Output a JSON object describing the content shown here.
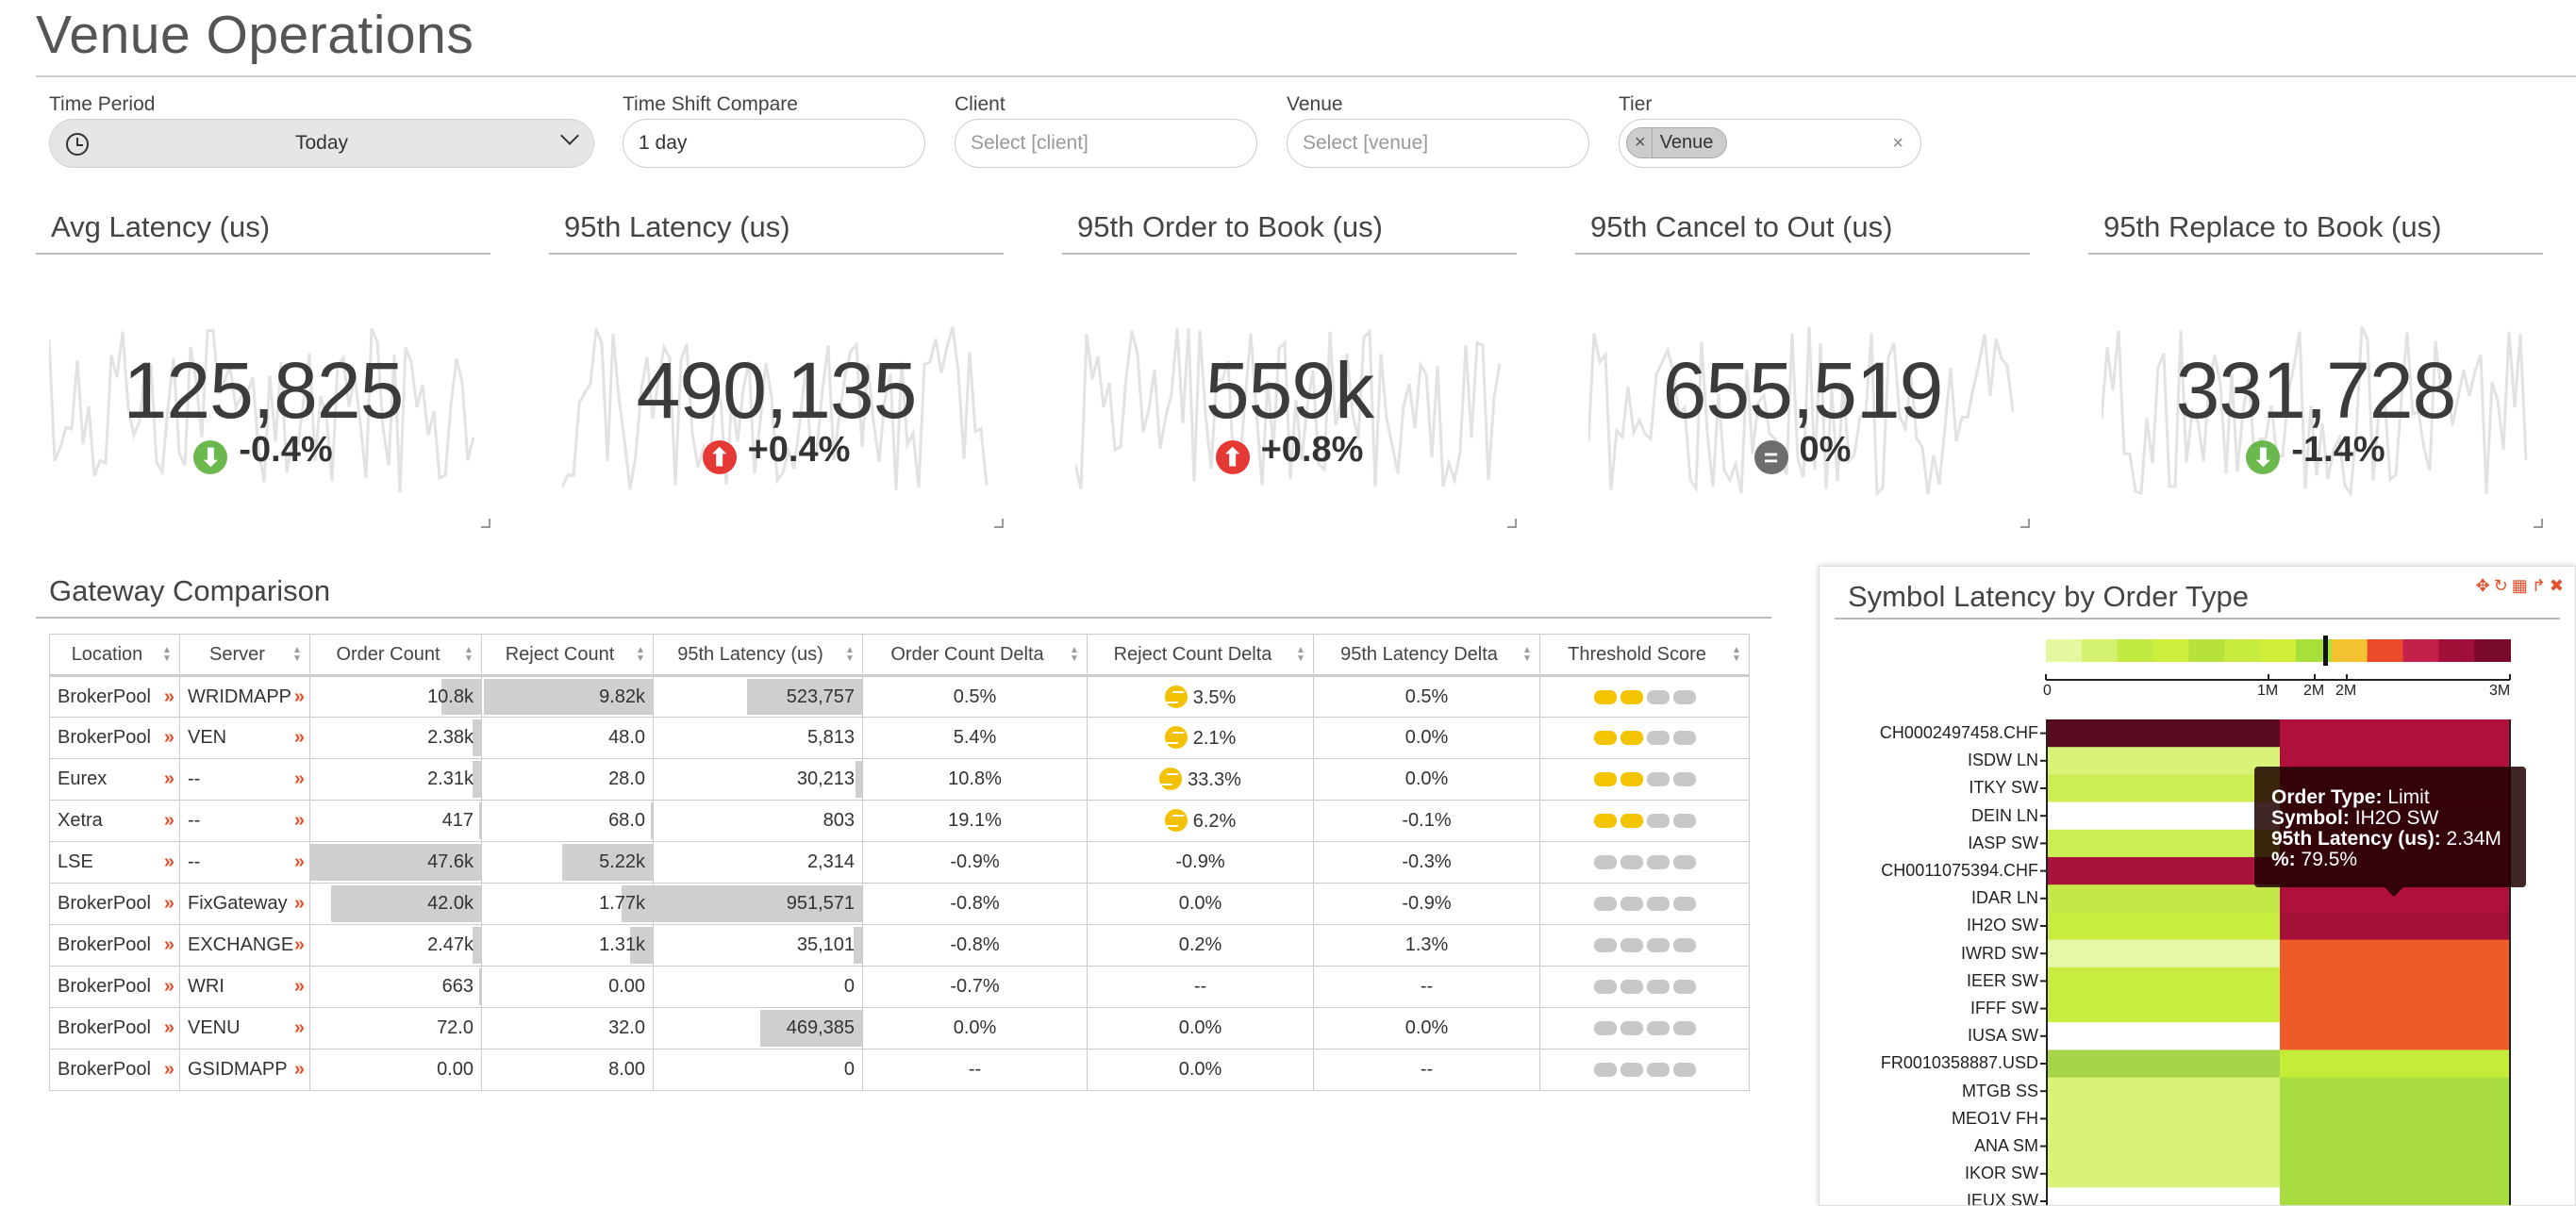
{
  "page": {
    "title": "Venue Operations"
  },
  "filters": {
    "time_period": {
      "label": "Time Period",
      "value": "Today"
    },
    "time_shift": {
      "label": "Time Shift Compare",
      "value": "1 day"
    },
    "client": {
      "label": "Client",
      "placeholder": "Select [client]"
    },
    "venue": {
      "label": "Venue",
      "placeholder": "Select [venue]"
    },
    "tier": {
      "label": "Tier",
      "tag_remove": "×",
      "tag": "Venue",
      "clear": "×"
    }
  },
  "kpis": [
    {
      "title": "Avg Latency (us)",
      "value": "125,825",
      "delta": "-0.4%",
      "direction": "down",
      "color": "#6bb84e"
    },
    {
      "title": "95th Latency (us)",
      "value": "490,135",
      "delta": "+0.4%",
      "direction": "up",
      "color": "#e53935"
    },
    {
      "title": "95th Order to Book (us)",
      "value": "559k",
      "delta": "+0.8%",
      "direction": "up",
      "color": "#e53935"
    },
    {
      "title": "95th Cancel to Out (us)",
      "value": "655,519",
      "delta": "0%",
      "direction": "flat",
      "color": "#6d6d6d"
    },
    {
      "title": "95th Replace to Book (us)",
      "value": "331,728",
      "delta": "-1.4%",
      "direction": "down",
      "color": "#6bb84e"
    }
  ],
  "gateway": {
    "title": "Gateway Comparison",
    "columns": [
      "Location",
      "Server",
      "Order Count",
      "Reject Count",
      "95th Latency (us)",
      "Order Count Delta",
      "Reject Count Delta",
      "95th Latency Delta",
      "Threshold Score"
    ],
    "rows": [
      {
        "location": "BrokerPool",
        "server": "WRIDMAPP",
        "order_count": "10.8k",
        "reject_count": "9.82k",
        "latency": "523,757",
        "order_delta": "0.5%",
        "reject_delta": "3.5%",
        "reject_warn": true,
        "latency_delta": "0.5%",
        "score": 2,
        "bars": [
          0.23,
          0.99,
          0.55
        ]
      },
      {
        "location": "BrokerPool",
        "server": "VEN",
        "order_count": "2.38k",
        "reject_count": "48.0",
        "latency": "5,813",
        "order_delta": "5.4%",
        "reject_delta": "2.1%",
        "reject_warn": true,
        "latency_delta": "0.0%",
        "score": 2,
        "bars": [
          0.05,
          0.0,
          0.0
        ]
      },
      {
        "location": "Eurex",
        "server": "--",
        "order_count": "2.31k",
        "reject_count": "28.0",
        "latency": "30,213",
        "order_delta": "10.8%",
        "reject_delta": "33.3%",
        "reject_warn": true,
        "latency_delta": "0.0%",
        "score": 2,
        "bars": [
          0.05,
          0.0,
          0.03
        ]
      },
      {
        "location": "Xetra",
        "server": "--",
        "order_count": "417",
        "reject_count": "68.0",
        "latency": "803",
        "order_delta": "19.1%",
        "reject_delta": "6.2%",
        "reject_warn": true,
        "latency_delta": "-0.1%",
        "score": 2,
        "bars": [
          0.01,
          0.01,
          0.0
        ]
      },
      {
        "location": "LSE",
        "server": "--",
        "order_count": "47.6k",
        "reject_count": "5.22k",
        "latency": "2,314",
        "order_delta": "-0.9%",
        "reject_delta": "-0.9%",
        "reject_warn": false,
        "latency_delta": "-0.3%",
        "score": 0,
        "bars": [
          1.0,
          0.53,
          0.0
        ]
      },
      {
        "location": "BrokerPool",
        "server": "FixGateway",
        "order_count": "42.0k",
        "reject_count": "1.77k",
        "latency": "951,571",
        "order_delta": "-0.8%",
        "reject_delta": "0.0%",
        "reject_warn": false,
        "latency_delta": "-0.9%",
        "score": 0,
        "bars": [
          0.88,
          0.18,
          1.0
        ]
      },
      {
        "location": "BrokerPool",
        "server": "EXCHANGE",
        "order_count": "2.47k",
        "reject_count": "1.31k",
        "latency": "35,101",
        "order_delta": "-0.8%",
        "reject_delta": "0.2%",
        "reject_warn": false,
        "latency_delta": "1.3%",
        "score": 0,
        "bars": [
          0.05,
          0.13,
          0.04
        ]
      },
      {
        "location": "BrokerPool",
        "server": "WRI",
        "order_count": "663",
        "reject_count": "0.00",
        "latency": "0",
        "order_delta": "-0.7%",
        "reject_delta": "--",
        "reject_warn": false,
        "latency_delta": "--",
        "score": 0,
        "bars": [
          0.01,
          0.0,
          0.0
        ]
      },
      {
        "location": "BrokerPool",
        "server": "VENU",
        "order_count": "72.0",
        "reject_count": "32.0",
        "latency": "469,385",
        "order_delta": "0.0%",
        "reject_delta": "0.0%",
        "reject_warn": false,
        "latency_delta": "0.0%",
        "score": 0,
        "bars": [
          0.0,
          0.0,
          0.49
        ]
      },
      {
        "location": "BrokerPool",
        "server": "GSIDMAPP",
        "order_count": "0.00",
        "reject_count": "8.00",
        "latency": "0",
        "order_delta": "--",
        "reject_delta": "0.0%",
        "reject_warn": false,
        "latency_delta": "--",
        "score": 0,
        "bars": [
          0.0,
          0.0,
          0.0
        ]
      }
    ]
  },
  "symbol_latency": {
    "title": "Symbol Latency by Order Type",
    "scale_labels": [
      "0",
      "1M",
      "2M",
      "2M",
      "3M"
    ],
    "symbols": [
      "CH0002497458.CHF",
      "ISDW LN",
      "ITKY SW",
      "DEIN LN",
      "IASP SW",
      "CH0011075394.CHF",
      "IDAR LN",
      "IH2O SW",
      "IWRD SW",
      "IEER SW",
      "IFFF SW",
      "IUSA SW",
      "FR0010358887.USD",
      "MTGB SS",
      "MEO1V FH",
      "ANA SM",
      "IKOR SW",
      "IEUX SW"
    ],
    "tooltip": {
      "order_type_label": "Order Type:",
      "order_type": "Limit",
      "symbol_label": "Symbol:",
      "symbol": "IH2O SW",
      "latency_label": "95th Latency (us):",
      "latency": "2.34M",
      "pct_label": "%:",
      "pct": "79.5%"
    }
  }
}
